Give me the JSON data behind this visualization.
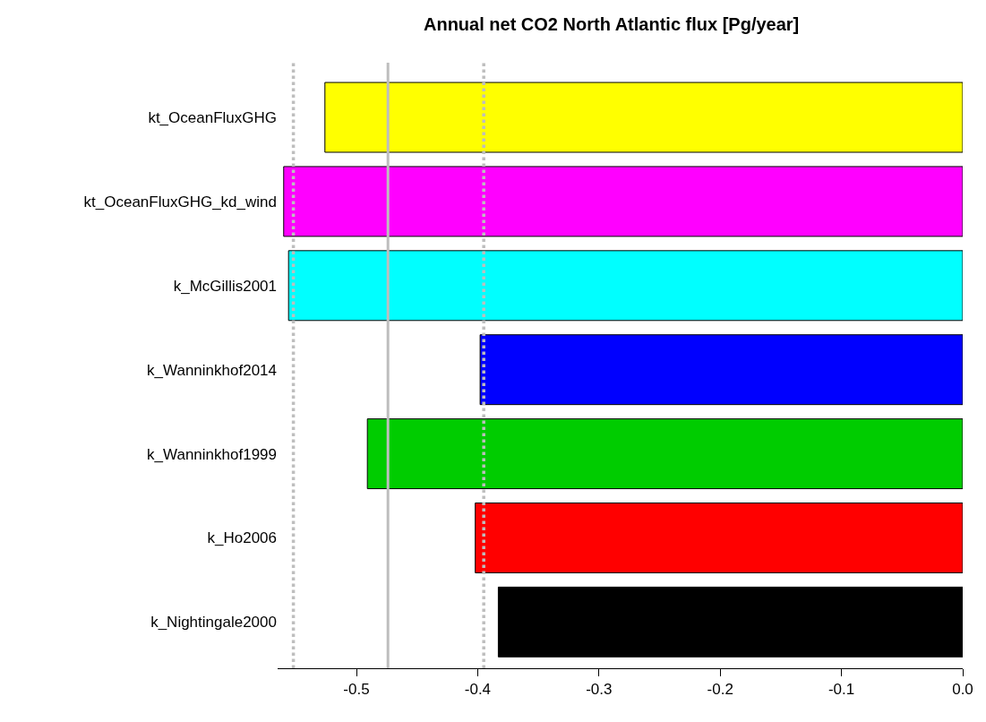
{
  "chart_data": {
    "type": "bar",
    "orientation": "horizontal",
    "title": "Annual net CO2 North Atlantic flux [Pg/year]",
    "categories": [
      "kt_OceanFluxGHG",
      "kt_OceanFluxGHG_kd_wind",
      "k_McGillis2001",
      "k_Wanninkhof2014",
      "k_Wanninkhof1999",
      "k_Ho2006",
      "k_Nightingale2000"
    ],
    "values": [
      -0.526,
      -0.56,
      -0.556,
      -0.398,
      -0.491,
      -0.402,
      -0.383
    ],
    "colors": [
      "#ffff00",
      "#ff00ff",
      "#00ffff",
      "#0000ff",
      "#00cc00",
      "#ff0000",
      "#000000"
    ],
    "xlim": [
      -0.565,
      0.0
    ],
    "xticks": [
      -0.5,
      -0.4,
      -0.3,
      -0.2,
      -0.1,
      {
        "value": 0,
        "label": "0.0"
      }
    ],
    "ref_lines": [
      {
        "axis": "x",
        "value": -0.552,
        "color": "#bebebe",
        "line_style": "dotted"
      },
      {
        "axis": "x",
        "value": -0.474,
        "color": "#bebebe",
        "line_style": "solid"
      },
      {
        "axis": "x",
        "value": -0.395,
        "color": "#bebebe",
        "line_style": "dotted"
      }
    ]
  }
}
